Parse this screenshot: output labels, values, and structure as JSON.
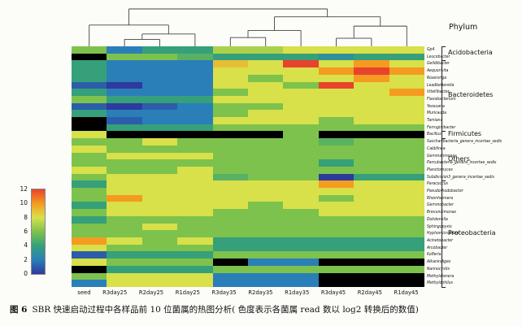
{
  "figure": {
    "phylum_header": "Phylum",
    "caption_label": "图 6",
    "caption_text": "SBR 快速启动过程中各样品前 10 位菌属的热图分析( 色度表示各菌属 read 数以 log2 转换后的数值)"
  },
  "chart_data": {
    "type": "heatmap",
    "title": "",
    "value_scale": "log2(read counts)",
    "columns": [
      "seed",
      "R3day25",
      "R2day25",
      "R1day25",
      "R3day35",
      "R2day35",
      "R1day35",
      "R3day45",
      "R2day45",
      "R1day45"
    ],
    "rows": [
      "Gp4",
      "Leucobacter",
      "Gelidibacter",
      "Aequorivita",
      "Roseivirga",
      "Leadbetterella",
      "Vitellibacter",
      "Flavobacterium",
      "Yeosuana",
      "Muricauda",
      "Tamlana",
      "Ferruginibacter",
      "Bacillus",
      "Saccharibacteria_genera_incertae_sedis",
      "Caldilinea",
      "Gemmatimonas",
      "Parcubacteria_genera_incertae_sedis",
      "Planctomyces",
      "Subdivision3_genera_incertae_sedis",
      "Paracoccus",
      "Pseudorhodobacter",
      "Rheinheimera",
      "Gemmobacter",
      "Brevundimonas",
      "Dokdonella",
      "Sphingopyxis",
      "Hyphomicrobium",
      "Acinetobacter",
      "Arcobacter",
      "Kofleria",
      "Alkanindiges",
      "Nannocystis",
      "Methylotenera",
      "Methylophilus"
    ],
    "values": [
      [
        6,
        2,
        4,
        4,
        7,
        7,
        8,
        8,
        8,
        8
      ],
      [
        null,
        6,
        6,
        5,
        4,
        4,
        4,
        3,
        4,
        4
      ],
      [
        4,
        2,
        2,
        2,
        9,
        8,
        12,
        8,
        10,
        8
      ],
      [
        4,
        2,
        2,
        2,
        8,
        8,
        8,
        10,
        12,
        10
      ],
      [
        4,
        2,
        2,
        2,
        8,
        6,
        8,
        8,
        10,
        8
      ],
      [
        1,
        0,
        2,
        2,
        8,
        8,
        6,
        12,
        8,
        8
      ],
      [
        4,
        2,
        2,
        2,
        6,
        8,
        8,
        8,
        8,
        10
      ],
      [
        6,
        4,
        4,
        4,
        8,
        8,
        8,
        8,
        8,
        8
      ],
      [
        1,
        0,
        1,
        2,
        6,
        6,
        8,
        8,
        8,
        8
      ],
      [
        4,
        2,
        2,
        2,
        6,
        8,
        8,
        8,
        8,
        8
      ],
      [
        null,
        1,
        2,
        2,
        8,
        8,
        8,
        6,
        8,
        8
      ],
      [
        null,
        4,
        4,
        4,
        6,
        6,
        6,
        6,
        6,
        6
      ],
      [
        8,
        null,
        null,
        null,
        null,
        null,
        6,
        null,
        null,
        null
      ],
      [
        6,
        6,
        8,
        6,
        6,
        6,
        6,
        5,
        6,
        6
      ],
      [
        8,
        6,
        6,
        6,
        6,
        6,
        6,
        6,
        6,
        6
      ],
      [
        6,
        8,
        8,
        8,
        6,
        6,
        6,
        6,
        6,
        6
      ],
      [
        6,
        6,
        6,
        6,
        6,
        6,
        6,
        4,
        6,
        6
      ],
      [
        8,
        6,
        6,
        8,
        6,
        6,
        6,
        6,
        6,
        6
      ],
      [
        6,
        8,
        8,
        8,
        5,
        6,
        6,
        0,
        4,
        4
      ],
      [
        4,
        8,
        8,
        8,
        8,
        8,
        8,
        10,
        8,
        8
      ],
      [
        6,
        8,
        8,
        8,
        8,
        8,
        8,
        8,
        8,
        8
      ],
      [
        6,
        10,
        8,
        8,
        8,
        8,
        8,
        6,
        8,
        8
      ],
      [
        4,
        8,
        8,
        8,
        8,
        6,
        8,
        8,
        8,
        8
      ],
      [
        6,
        8,
        8,
        8,
        6,
        6,
        6,
        8,
        8,
        8
      ],
      [
        4,
        6,
        6,
        6,
        6,
        6,
        6,
        6,
        6,
        6
      ],
      [
        6,
        6,
        8,
        6,
        6,
        6,
        6,
        6,
        6,
        6
      ],
      [
        6,
        6,
        6,
        6,
        6,
        6,
        6,
        6,
        6,
        6
      ],
      [
        10,
        8,
        6,
        8,
        4,
        4,
        4,
        4,
        4,
        4
      ],
      [
        8,
        6,
        6,
        6,
        4,
        4,
        4,
        4,
        4,
        4
      ],
      [
        1,
        4,
        4,
        4,
        6,
        6,
        6,
        6,
        6,
        6
      ],
      [
        8,
        6,
        6,
        6,
        null,
        2,
        2,
        null,
        null,
        null
      ],
      [
        null,
        4,
        4,
        4,
        6,
        6,
        6,
        6,
        6,
        6
      ],
      [
        6,
        8,
        8,
        8,
        2,
        2,
        2,
        null,
        null,
        null
      ],
      [
        2,
        8,
        8,
        8,
        2,
        2,
        2,
        null,
        null,
        null
      ]
    ],
    "na_color": "#000000",
    "legend_ticks": [
      12,
      10,
      8,
      6,
      4,
      2,
      0
    ],
    "colormap_stops": [
      {
        "v": 0,
        "color": "#2d3a9e"
      },
      {
        "v": 2,
        "color": "#2a7fb8"
      },
      {
        "v": 4,
        "color": "#35a07a"
      },
      {
        "v": 6,
        "color": "#7dc24c"
      },
      {
        "v": 8,
        "color": "#d8e04a"
      },
      {
        "v": 10,
        "color": "#f59b20"
      },
      {
        "v": 12,
        "color": "#e8432c"
      }
    ],
    "phyla": [
      {
        "name": "Acidobacteria",
        "start": 0,
        "end": 1
      },
      {
        "name": "Bacteroidetes",
        "start": 2,
        "end": 11
      },
      {
        "name": "Firmicutes",
        "start": 12,
        "end": 12
      },
      {
        "name": "Others",
        "start": 13,
        "end": 18
      },
      {
        "name": "Proteobacteria",
        "start": 19,
        "end": 33
      }
    ],
    "dendrogram": {
      "h": 1.0,
      "children": [
        {
          "h": 0.55,
          "children": [
            {
              "leaf": 0
            },
            {
              "h": 0.3,
              "children": [
                {
                  "h": 0.15,
                  "children": [
                    {
                      "leaf": 1
                    },
                    {
                      "leaf": 2
                    }
                  ]
                },
                {
                  "leaf": 3
                }
              ]
            }
          ]
        },
        {
          "h": 0.78,
          "children": [
            {
              "h": 0.4,
              "children": [
                {
                  "h": 0.2,
                  "children": [
                    {
                      "leaf": 4
                    },
                    {
                      "leaf": 5
                    }
                  ]
                },
                {
                  "leaf": 6
                }
              ]
            },
            {
              "h": 0.52,
              "children": [
                {
                  "h": 0.18,
                  "children": [
                    {
                      "leaf": 7
                    },
                    {
                      "leaf": 8
                    }
                  ]
                },
                {
                  "leaf": 9
                }
              ]
            }
          ]
        }
      ]
    }
  }
}
